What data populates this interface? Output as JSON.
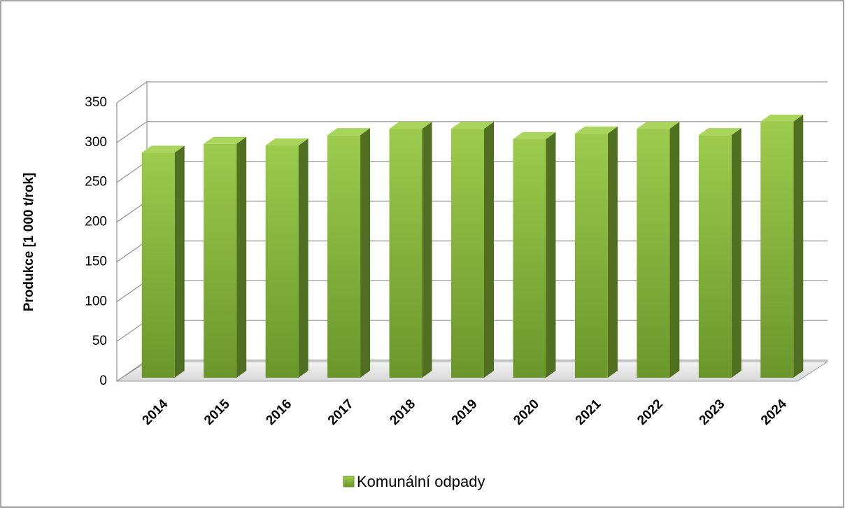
{
  "chart_data": {
    "type": "bar3d",
    "y_label": "Produkce [1 000 t/rok]",
    "categories": [
      "2014",
      "2015",
      "2016",
      "2017",
      "2018",
      "2019",
      "2020",
      "2021",
      "2022",
      "2023",
      "2024"
    ],
    "series": [
      {
        "name": "Komunální odpady",
        "color": "#8cbf3f",
        "values": [
          283,
          294,
          292,
          305,
          313,
          313,
          300,
          307,
          313,
          305,
          322
        ]
      }
    ],
    "ylim": [
      0,
      350
    ],
    "yticks": [
      0,
      50,
      100,
      150,
      200,
      250,
      300,
      350
    ],
    "grid": true,
    "legend": "bottom"
  }
}
